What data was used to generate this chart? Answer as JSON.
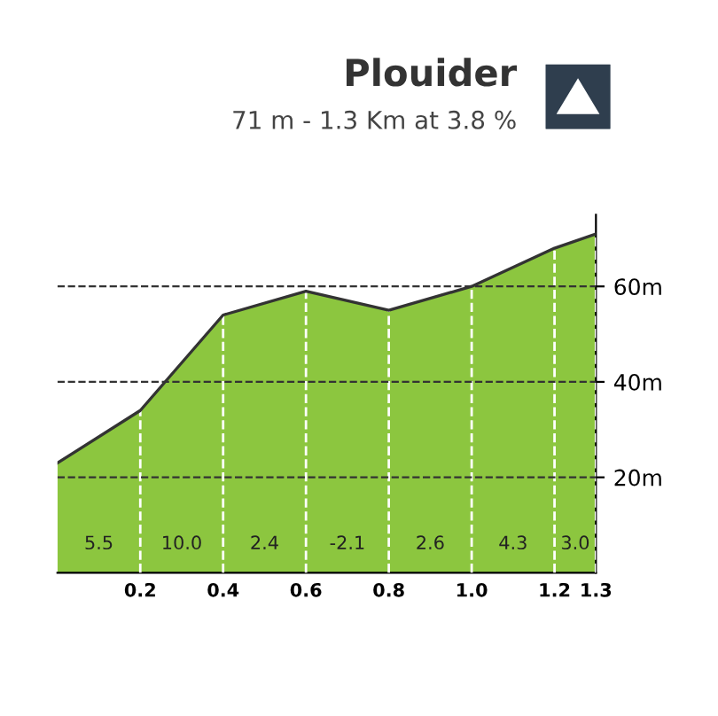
{
  "chart_data": {
    "type": "area",
    "title": "Plouider",
    "subtitle": "71 m - 1.3 Km at 3.8 %",
    "xlabel": null,
    "x": [
      0,
      0.2,
      0.4,
      0.6,
      0.8,
      1.0,
      1.2,
      1.3
    ],
    "values": [
      23,
      34,
      54,
      59,
      55,
      60,
      68,
      71
    ],
    "color": "#8cc63f",
    "xlim": [
      0,
      1.3
    ],
    "ylim": [
      0,
      75
    ],
    "xticks": [
      0.2,
      0.4,
      0.6,
      0.8,
      {
        "value": 1.0,
        "label": "1.0"
      },
      1.2,
      1.3
    ],
    "yticks": [
      {
        "value": 20,
        "label": "20m"
      },
      {
        "value": 40,
        "label": "40m"
      },
      {
        "value": 60,
        "label": "60m"
      }
    ],
    "grid": true,
    "annotations": [
      "5.5",
      "10.0",
      "2.4",
      "-2.1",
      "2.6",
      "4.3",
      "3.0"
    ]
  }
}
